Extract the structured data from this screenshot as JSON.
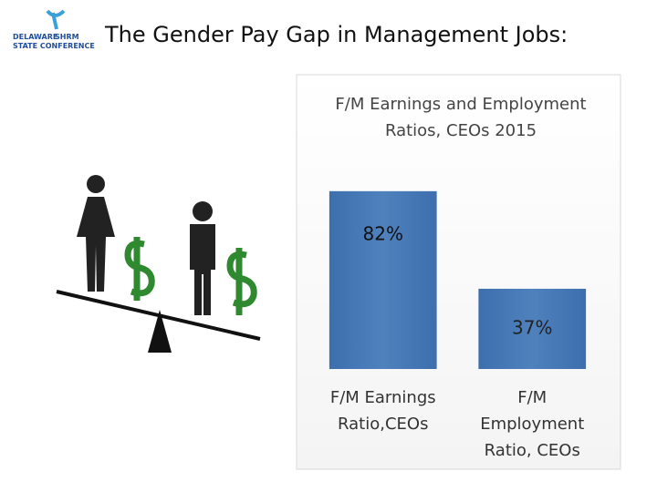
{
  "header": {
    "title": "The Gender Pay Gap in Management Jobs:",
    "logo": [
      "DELAWARE",
      "SHRM",
      "STATE CONFERENCE"
    ]
  },
  "chart_data": {
    "type": "bar",
    "title": "F/M Earnings and Employment Ratios, CEOs 2015",
    "categories": [
      "F/M Earnings Ratio,CEOs",
      "F/M Employment Ratio, CEOs"
    ],
    "values": [
      82,
      37
    ],
    "value_labels": [
      "82%",
      "37%"
    ],
    "color": "#4f81bd",
    "ylim": [
      0,
      100
    ]
  }
}
